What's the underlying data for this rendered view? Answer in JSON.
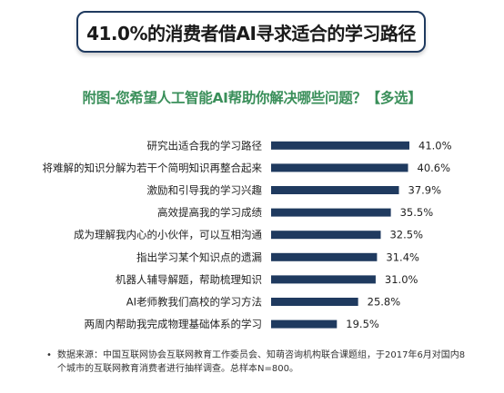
{
  "title": "41.0%的消费者借AI寻求适合的学习路径",
  "subtitle": "附图-您希望人工智能AI帮助你解决哪些问题？【多选】",
  "footnote": {
    "bullet": "•",
    "text": "数据来源：中国互联网协会互联网教育工作委员会、知萌咨询机构联合课题组，于2017年6月对国内8个城市的互联网教育消费者进行抽样调查。总样本N=800。"
  },
  "colors": {
    "bar": "#1f3a5f",
    "subtitle": "#3a8f5a",
    "title_border": "#1f3a5f"
  },
  "chart_data": {
    "type": "bar",
    "orientation": "horizontal",
    "categories": [
      "研究出适合我的学习路径",
      "将难解的知识分解为若干个简明知识再整合起来",
      "激励和引导我的学习兴趣",
      "高效提高我的学习成绩",
      "成为理解我内心的小伙伴，可以互相沟通",
      "指出学习某个知识点的遗漏",
      "机器人辅导解题，帮助梳理知识",
      "AI老师教我们高校的学习方法",
      "两周内帮助我完成物理基础体系的学习"
    ],
    "values": [
      41.0,
      40.6,
      37.9,
      35.5,
      32.5,
      31.4,
      31.0,
      25.8,
      19.5
    ],
    "value_labels": [
      "41.0%",
      "40.6%",
      "37.9%",
      "35.5%",
      "32.5%",
      "31.4%",
      "31.0%",
      "25.8%",
      "19.5%"
    ],
    "xlim": [
      0,
      41.0
    ],
    "grid": false,
    "legend": "none"
  }
}
